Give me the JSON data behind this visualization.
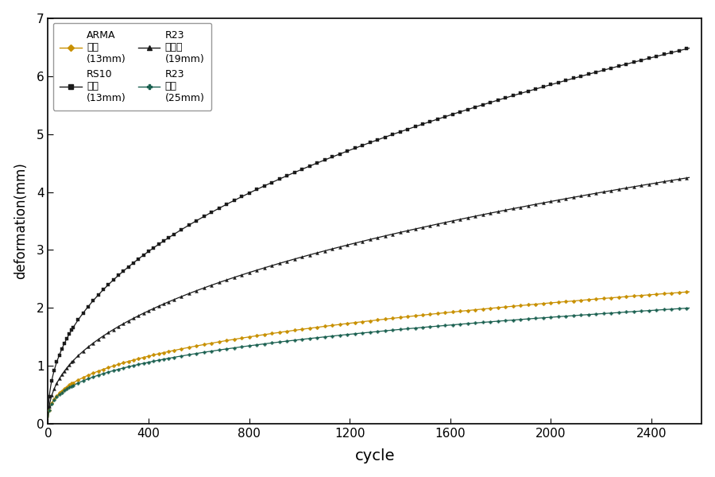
{
  "xlabel": "cycle",
  "ylabel": "deformation(mm)",
  "xlim": [
    0,
    2600
  ],
  "ylim": [
    0,
    7
  ],
  "xticks": [
    0,
    400,
    800,
    1200,
    1600,
    2000,
    2400
  ],
  "yticks": [
    0,
    1,
    2,
    3,
    4,
    5,
    6,
    7
  ],
  "x_max": 2550,
  "series": [
    {
      "label": "RS10\n표층\n(13mm)",
      "color": "#1a1a1a",
      "marker": "s",
      "ms": 2.5,
      "b": 0.42,
      "final_y": 6.48,
      "marker_every": 25
    },
    {
      "label": "R23\n중간층\n(19mm)",
      "color": "#1a1a1a",
      "marker": "^",
      "ms": 2.8,
      "b": 0.42,
      "final_y": 4.25,
      "marker_every": 25
    },
    {
      "label": "ARMA\n표층\n(13mm)",
      "color": "#c89000",
      "marker": "D",
      "ms": 2.5,
      "b": 0.36,
      "final_y": 2.28,
      "marker_every": 25
    },
    {
      "label": "R23\n기층\n(25mm)",
      "color": "#1a6050",
      "marker": "P",
      "ms": 2.8,
      "b": 0.34,
      "final_y": 2.0,
      "marker_every": 25
    }
  ],
  "legend_order": [
    0,
    1,
    2,
    3
  ],
  "legend_ncol": 2,
  "background_color": "#ffffff"
}
